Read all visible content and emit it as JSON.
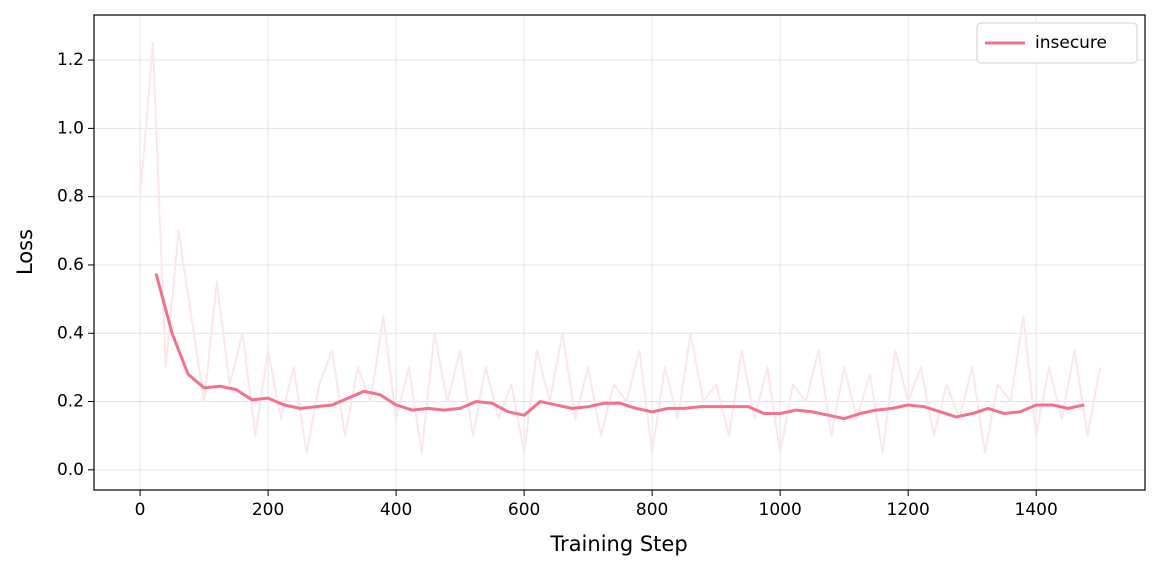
{
  "chart_data": {
    "type": "line",
    "xlabel": "Training Step",
    "ylabel": "Loss",
    "xlim": [
      -72,
      1570
    ],
    "ylim": [
      -0.059,
      1.332
    ],
    "xticks": [
      0,
      200,
      400,
      600,
      800,
      1000,
      1200,
      1400
    ],
    "yticks": [
      {
        "value": 0,
        "label": "0.0"
      },
      0.2,
      0.4,
      0.6,
      0.8,
      {
        "value": 1,
        "label": "1.0"
      },
      1.2
    ],
    "grid": true,
    "legend": "upper right",
    "series": [
      {
        "color": "#fde6eb",
        "x": [
          0,
          20,
          40,
          60,
          80,
          100,
          120,
          140,
          160,
          180,
          200,
          220,
          240,
          260,
          280,
          300,
          320,
          340,
          360,
          380,
          400,
          420,
          440,
          460,
          480,
          500,
          520,
          540,
          560,
          580,
          600,
          620,
          640,
          660,
          680,
          700,
          720,
          740,
          760,
          780,
          800,
          820,
          840,
          860,
          880,
          900,
          920,
          940,
          960,
          980,
          1000,
          1020,
          1040,
          1060,
          1080,
          1100,
          1120,
          1140,
          1160,
          1180,
          1200,
          1220,
          1240,
          1260,
          1280,
          1300,
          1320,
          1340,
          1360,
          1380,
          1400,
          1420,
          1440,
          1460,
          1480,
          1500
        ],
        "values": [
          0.8,
          1.25,
          0.3,
          0.7,
          0.45,
          0.2,
          0.55,
          0.25,
          0.4,
          0.1,
          0.35,
          0.15,
          0.3,
          0.05,
          0.25,
          0.35,
          0.1,
          0.3,
          0.2,
          0.45,
          0.15,
          0.3,
          0.05,
          0.4,
          0.2,
          0.35,
          0.1,
          0.3,
          0.15,
          0.25,
          0.05,
          0.35,
          0.2,
          0.4,
          0.15,
          0.3,
          0.1,
          0.25,
          0.2,
          0.35,
          0.05,
          0.3,
          0.15,
          0.4,
          0.2,
          0.25,
          0.1,
          0.35,
          0.15,
          0.3,
          0.05,
          0.25,
          0.2,
          0.35,
          0.1,
          0.3,
          0.15,
          0.28,
          0.05,
          0.35,
          0.2,
          0.3,
          0.1,
          0.25,
          0.15,
          0.3,
          0.05,
          0.25,
          0.2,
          0.45,
          0.1,
          0.3,
          0.15,
          0.35,
          0.1,
          0.3
        ]
      },
      {
        "name": "insecure",
        "color": "#f2728c",
        "x": [
          25,
          50,
          75,
          100,
          125,
          150,
          175,
          200,
          225,
          250,
          275,
          300,
          325,
          350,
          375,
          400,
          425,
          450,
          475,
          500,
          525,
          550,
          575,
          600,
          625,
          650,
          675,
          700,
          725,
          750,
          775,
          800,
          825,
          850,
          875,
          900,
          925,
          950,
          975,
          1000,
          1025,
          1050,
          1075,
          1100,
          1125,
          1150,
          1175,
          1200,
          1225,
          1250,
          1275,
          1300,
          1325,
          1350,
          1375,
          1400,
          1425,
          1450,
          1475
        ],
        "values": [
          0.575,
          0.4,
          0.28,
          0.24,
          0.245,
          0.235,
          0.205,
          0.21,
          0.19,
          0.18,
          0.185,
          0.19,
          0.21,
          0.23,
          0.22,
          0.19,
          0.175,
          0.18,
          0.175,
          0.18,
          0.2,
          0.195,
          0.17,
          0.16,
          0.2,
          0.19,
          0.18,
          0.185,
          0.195,
          0.195,
          0.18,
          0.17,
          0.18,
          0.18,
          0.185,
          0.185,
          0.185,
          0.185,
          0.165,
          0.165,
          0.175,
          0.17,
          0.16,
          0.15,
          0.165,
          0.175,
          0.18,
          0.19,
          0.185,
          0.17,
          0.155,
          0.165,
          0.18,
          0.165,
          0.17,
          0.19,
          0.19,
          0.18,
          0.19
        ]
      }
    ]
  }
}
